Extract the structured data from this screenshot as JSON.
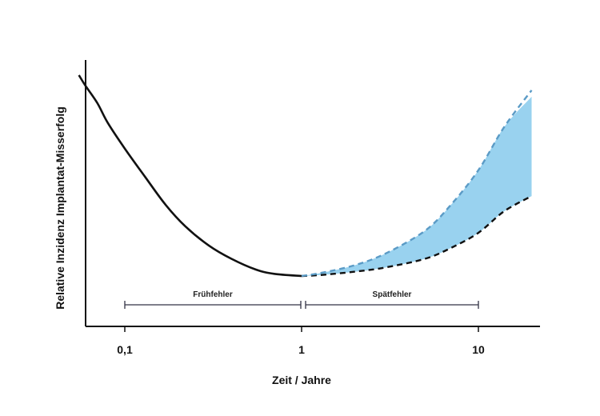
{
  "chart_data": {
    "type": "line",
    "xlabel": "Zeit / Jahre",
    "ylabel": "Relative Inzidenz Implantat-Misserfolg",
    "x_scale": "log",
    "xlim": [
      0.05,
      20
    ],
    "ylim": [
      0,
      100
    ],
    "x_ticks": [
      {
        "value": 0.1,
        "label": "0,1"
      },
      {
        "value": 1,
        "label": "1"
      },
      {
        "value": 10,
        "label": "10"
      }
    ],
    "grid": false,
    "series": [
      {
        "style": "solid",
        "color": "#111111",
        "points": [
          [
            0.055,
            100
          ],
          [
            0.06,
            95
          ],
          [
            0.07,
            87
          ],
          [
            0.08,
            78
          ],
          [
            0.1,
            66
          ],
          [
            0.13,
            53
          ],
          [
            0.17,
            40
          ],
          [
            0.22,
            30
          ],
          [
            0.3,
            21
          ],
          [
            0.4,
            15
          ],
          [
            0.55,
            10
          ],
          [
            0.7,
            8
          ],
          [
            1.0,
            7
          ]
        ]
      },
      {
        "style": "dashed",
        "color": "#111111",
        "points": [
          [
            1.0,
            7
          ],
          [
            1.3,
            7.5
          ],
          [
            2,
            9
          ],
          [
            3,
            11
          ],
          [
            5,
            15
          ],
          [
            7,
            20
          ],
          [
            10,
            27
          ],
          [
            14,
            37
          ],
          [
            20,
            44
          ]
        ]
      },
      {
        "style": "dashed",
        "color": "#5b9bc6",
        "points": [
          [
            1.0,
            7
          ],
          [
            1.3,
            8.5
          ],
          [
            2,
            12
          ],
          [
            3,
            17.5
          ],
          [
            5,
            28
          ],
          [
            7,
            40
          ],
          [
            10,
            56
          ],
          [
            14,
            76
          ],
          [
            20,
            93
          ]
        ]
      }
    ],
    "band": {
      "color": "#99d2ef",
      "lower": [
        [
          1.0,
          7
        ],
        [
          1.3,
          7.5
        ],
        [
          2,
          9
        ],
        [
          3,
          11
        ],
        [
          5,
          15
        ],
        [
          7,
          20
        ],
        [
          10,
          27
        ],
        [
          14,
          37
        ],
        [
          20,
          44
        ]
      ],
      "upper": [
        [
          1.0,
          7
        ],
        [
          1.3,
          8.5
        ],
        [
          2,
          12
        ],
        [
          3,
          17.5
        ],
        [
          5,
          28
        ],
        [
          7,
          40
        ],
        [
          10,
          56
        ],
        [
          14,
          76
        ],
        [
          20,
          90
        ]
      ]
    },
    "annotations": [
      {
        "text": "Frühfehler",
        "x_start": 0.1,
        "x_end": 1.0
      },
      {
        "text": "Spätfehler",
        "x_start": 1.0,
        "x_end": 10
      }
    ]
  }
}
